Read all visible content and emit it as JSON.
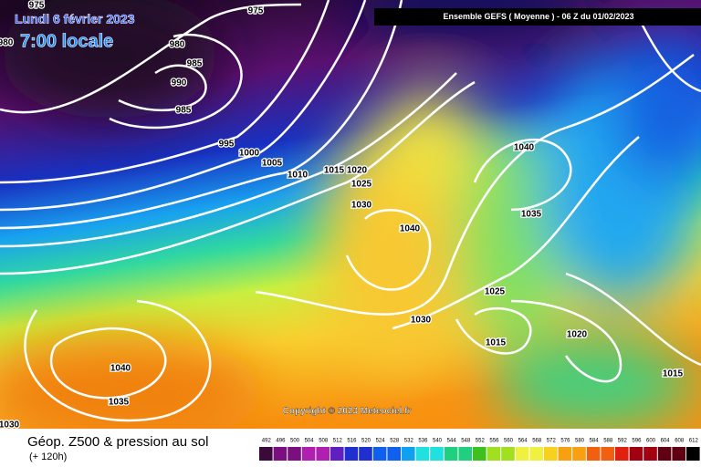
{
  "header": {
    "date": "Lundi 6 février 2023",
    "time": "7:00 locale",
    "model": "Ensemble GEFS  ( Moyenne )  -  06 Z du 01/02/2023"
  },
  "isobar_labels": [
    "975",
    "975",
    "980",
    "980",
    "985",
    "990",
    "985",
    "995",
    "1000",
    "1005",
    "1010",
    "1015",
    "1020",
    "1025",
    "1030",
    "1040",
    "1040",
    "1035",
    "1025",
    "1030",
    "1015",
    "1020",
    "1015",
    "1040",
    "1035",
    "1030"
  ],
  "copyright": "Copyright © 2023 Meteociel.fr",
  "footer": {
    "title": "Géop. Z500 & pression au sol",
    "lead": "(+ 120h)"
  },
  "colorbar": {
    "ticks": [
      492,
      496,
      500,
      504,
      508,
      512,
      516,
      520,
      524,
      528,
      532,
      536,
      540,
      544,
      548,
      552,
      556,
      560,
      564,
      568,
      572,
      576,
      580,
      584,
      588,
      592,
      596,
      600,
      604,
      608,
      612
    ]
  }
}
